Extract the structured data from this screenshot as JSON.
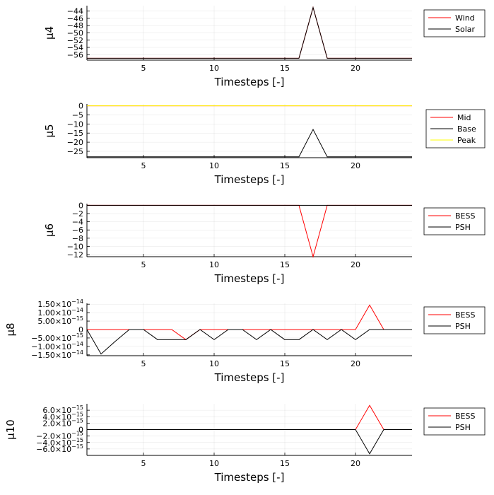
{
  "chart_data": [
    {
      "type": "line",
      "ylabel": "μ4",
      "xlabel": "Timesteps [-]",
      "xlim": [
        1,
        24
      ],
      "ylim": [
        -57.5,
        -42.5
      ],
      "xticks": [
        5,
        10,
        15,
        20
      ],
      "yticks": [
        -44,
        -46,
        -48,
        -50,
        -52,
        -54,
        -56
      ],
      "yticklabels": [
        "−44",
        "−46",
        "−48",
        "−50",
        "−52",
        "−54",
        "−56"
      ],
      "legend_position": "right",
      "x": [
        1,
        2,
        3,
        4,
        5,
        6,
        7,
        8,
        9,
        10,
        11,
        12,
        13,
        14,
        15,
        16,
        17,
        18,
        19,
        20,
        21,
        22,
        23,
        24
      ],
      "series": [
        {
          "name": "Wind",
          "color": "#ff0000",
          "values": [
            -57,
            -57,
            -57,
            -57,
            -57,
            -57,
            -57,
            -57,
            -57,
            -57,
            -57,
            -57,
            -57,
            -57,
            -57,
            -57,
            -43,
            -57,
            -57,
            -57,
            -57,
            -57,
            -57,
            -57
          ]
        },
        {
          "name": "Solar",
          "color": "#000000",
          "values": [
            -57,
            -57,
            -57,
            -57,
            -57,
            -57,
            -57,
            -57,
            -57,
            -57,
            -57,
            -57,
            -57,
            -57,
            -57,
            -57,
            -43,
            -57,
            -57,
            -57,
            -57,
            -57,
            -57,
            -57
          ]
        }
      ]
    },
    {
      "type": "line",
      "ylabel": "μ5",
      "xlabel": "Timesteps [-]",
      "xlim": [
        1,
        24
      ],
      "ylim": [
        -28.5,
        1
      ],
      "xticks": [
        5,
        10,
        15,
        20
      ],
      "yticks": [
        0,
        -5,
        -10,
        -15,
        -20,
        -25
      ],
      "yticklabels": [
        "0",
        "−5",
        "−10",
        "−15",
        "−20",
        "−25"
      ],
      "legend_position": "right",
      "x": [
        1,
        2,
        3,
        4,
        5,
        6,
        7,
        8,
        9,
        10,
        11,
        12,
        13,
        14,
        15,
        16,
        17,
        18,
        19,
        20,
        21,
        22,
        23,
        24
      ],
      "series": [
        {
          "name": "Mid",
          "color": "#ff0000",
          "values": [
            0,
            0,
            0,
            0,
            0,
            0,
            0,
            0,
            0,
            0,
            0,
            0,
            0,
            0,
            0,
            0,
            0,
            0,
            0,
            0,
            0,
            0,
            0,
            0
          ]
        },
        {
          "name": "Base",
          "color": "#000000",
          "values": [
            -28,
            -28,
            -28,
            -28,
            -28,
            -28,
            -28,
            -28,
            -28,
            -28,
            -28,
            -28,
            -28,
            -28,
            -28,
            -28,
            -13,
            -28,
            -28,
            -28,
            -28,
            -28,
            -28,
            -28
          ]
        },
        {
          "name": "Peak",
          "color": "#ffff00",
          "values": [
            0,
            0,
            0,
            0,
            0,
            0,
            0,
            0,
            0,
            0,
            0,
            0,
            0,
            0,
            0,
            0,
            0,
            0,
            0,
            0,
            0,
            0,
            0,
            0
          ]
        }
      ]
    },
    {
      "type": "line",
      "ylabel": "μ6",
      "xlabel": "Timesteps [-]",
      "xlim": [
        1,
        24
      ],
      "ylim": [
        -12.5,
        0.4
      ],
      "xticks": [
        5,
        10,
        15,
        20
      ],
      "yticks": [
        0,
        -2,
        -4,
        -6,
        -8,
        -10,
        -12
      ],
      "yticklabels": [
        "0",
        "−2",
        "−4",
        "−6",
        "−8",
        "−10",
        "−12"
      ],
      "legend_position": "right",
      "x": [
        1,
        2,
        3,
        4,
        5,
        6,
        7,
        8,
        9,
        10,
        11,
        12,
        13,
        14,
        15,
        16,
        17,
        18,
        19,
        20,
        21,
        22,
        23,
        24
      ],
      "series": [
        {
          "name": "BESS",
          "color": "#ff0000",
          "values": [
            0,
            0,
            0,
            0,
            0,
            0,
            0,
            0,
            0,
            0,
            0,
            0,
            0,
            0,
            0,
            0,
            -12.5,
            0,
            0,
            0,
            0,
            0,
            0,
            0
          ]
        },
        {
          "name": "PSH",
          "color": "#000000",
          "values": [
            0,
            0,
            0,
            0,
            0,
            0,
            0,
            0,
            0,
            0,
            0,
            0,
            0,
            0,
            0,
            0,
            0,
            0,
            0,
            0,
            0,
            0,
            0,
            0
          ]
        }
      ]
    },
    {
      "type": "line",
      "ylabel": "μ8",
      "xlabel": "Timesteps [-]",
      "xlim": [
        1,
        24
      ],
      "ylim": [
        -1.55e-14,
        1.55e-14
      ],
      "xticks": [
        5,
        10,
        15,
        20
      ],
      "yticks": [
        1.5e-14,
        1e-14,
        5e-15,
        0,
        -5e-15,
        -1e-14,
        -1.5e-14
      ],
      "yticklabels": [
        {
          "mant": "1.50×10",
          "exp": "−14"
        },
        {
          "mant": "1.00×10",
          "exp": "−14"
        },
        {
          "mant": "5.00×10",
          "exp": "−15"
        },
        {
          "mant": "0",
          "exp": ""
        },
        {
          "mant": "−5.00×10",
          "exp": "−15"
        },
        {
          "mant": "−1.00×10",
          "exp": "−14"
        },
        {
          "mant": "−1.50×10",
          "exp": "−14"
        }
      ],
      "legend_position": "right",
      "x": [
        1,
        2,
        3,
        4,
        5,
        6,
        7,
        8,
        9,
        10,
        11,
        12,
        13,
        14,
        15,
        16,
        17,
        18,
        19,
        20,
        21,
        22,
        23,
        24
      ],
      "series": [
        {
          "name": "BESS",
          "color": "#ff0000",
          "values": [
            0,
            0,
            0,
            0,
            0,
            0,
            0,
            -6e-15,
            0,
            0,
            0,
            0,
            0,
            0,
            0,
            0,
            0,
            0,
            0,
            0,
            1.45e-14,
            0,
            0,
            0
          ]
        },
        {
          "name": "PSH",
          "color": "#000000",
          "values": [
            0,
            -1.45e-14,
            -7e-15,
            0,
            0,
            -6e-15,
            -6e-15,
            -6e-15,
            0,
            -6e-15,
            0,
            0,
            -6e-15,
            0,
            -6e-15,
            -6e-15,
            0,
            -6e-15,
            0,
            -6e-15,
            0,
            0,
            0,
            0
          ]
        }
      ]
    },
    {
      "type": "line",
      "ylabel": "μ10",
      "xlabel": "Timesteps [-]",
      "xlim": [
        1,
        24
      ],
      "ylim": [
        -8e-15,
        8e-15
      ],
      "xticks": [
        5,
        10,
        15,
        20
      ],
      "yticks": [
        6e-15,
        4e-15,
        2e-15,
        0,
        -2e-15,
        -4e-15,
        -6e-15
      ],
      "yticklabels": [
        {
          "mant": "6.0×10",
          "exp": "−15"
        },
        {
          "mant": "4.0×10",
          "exp": "−15"
        },
        {
          "mant": "2.0×10",
          "exp": "−15"
        },
        {
          "mant": "0",
          "exp": ""
        },
        {
          "mant": "−2.0×10",
          "exp": "−15"
        },
        {
          "mant": "−4.0×10",
          "exp": "−15"
        },
        {
          "mant": "−6.0×10",
          "exp": "−15"
        }
      ],
      "legend_position": "right",
      "x": [
        1,
        2,
        3,
        4,
        5,
        6,
        7,
        8,
        9,
        10,
        11,
        12,
        13,
        14,
        15,
        16,
        17,
        18,
        19,
        20,
        21,
        22,
        23,
        24
      ],
      "series": [
        {
          "name": "BESS",
          "color": "#ff0000",
          "values": [
            0,
            0,
            0,
            0,
            0,
            0,
            0,
            0,
            0,
            0,
            0,
            0,
            0,
            0,
            0,
            0,
            0,
            0,
            0,
            0,
            7.5e-15,
            0,
            0,
            0
          ]
        },
        {
          "name": "PSH",
          "color": "#000000",
          "values": [
            0,
            0,
            0,
            0,
            0,
            0,
            0,
            0,
            0,
            0,
            0,
            0,
            0,
            0,
            0,
            0,
            0,
            0,
            0,
            0,
            -7.5e-15,
            0,
            0,
            0
          ]
        }
      ]
    }
  ]
}
